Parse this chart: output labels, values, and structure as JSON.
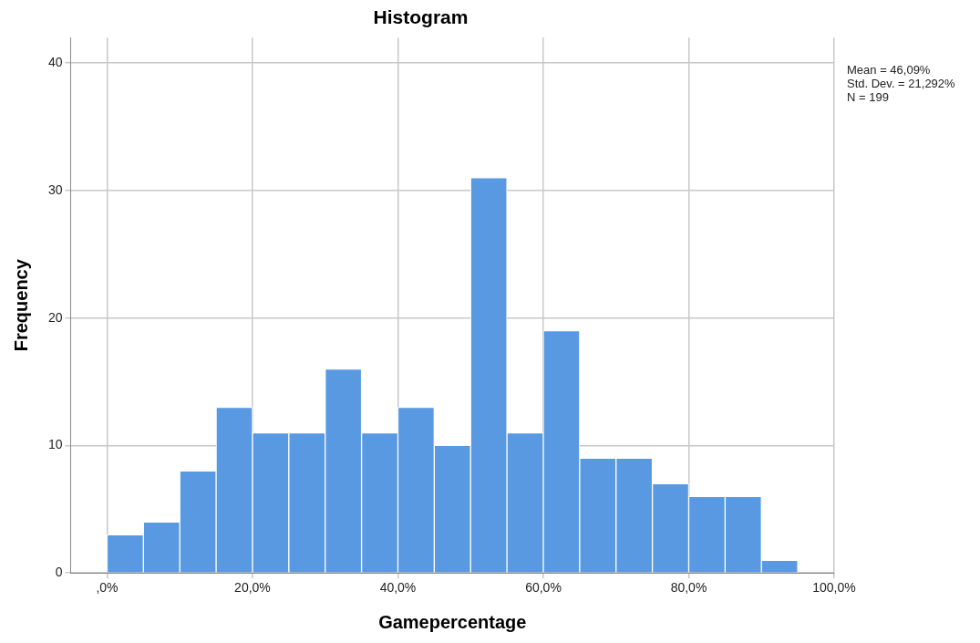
{
  "chart_data": {
    "type": "histogram",
    "title": "Histogram",
    "xlabel": "Gamepercentage",
    "ylabel": "Frequency",
    "bins": [
      0,
      5,
      10,
      15,
      20,
      25,
      30,
      35,
      40,
      45,
      50,
      55,
      60,
      65,
      70,
      75,
      80,
      85,
      90,
      95
    ],
    "values": [
      3,
      4,
      8,
      13,
      11,
      11,
      16,
      11,
      13,
      10,
      31,
      11,
      19,
      9,
      9,
      7,
      6,
      6,
      1
    ],
    "color": "#5899e2",
    "xlim": [
      -5,
      100
    ],
    "xticks": [
      {
        "value": 0,
        "label": ",0%"
      },
      {
        "value": 20,
        "label": "20,0%"
      },
      {
        "value": 40,
        "label": "40,0%"
      },
      {
        "value": 60,
        "label": "60,0%"
      },
      {
        "value": 80,
        "label": "80,0%"
      },
      {
        "value": 100,
        "label": "100,0%"
      }
    ],
    "ylim": [
      0,
      42
    ],
    "yticks": [
      0,
      10,
      20,
      30,
      40
    ],
    "grid": true,
    "annotations": [
      "Mean = 46,09%",
      "Std. Dev. = 21,292%",
      "N = 199"
    ]
  }
}
